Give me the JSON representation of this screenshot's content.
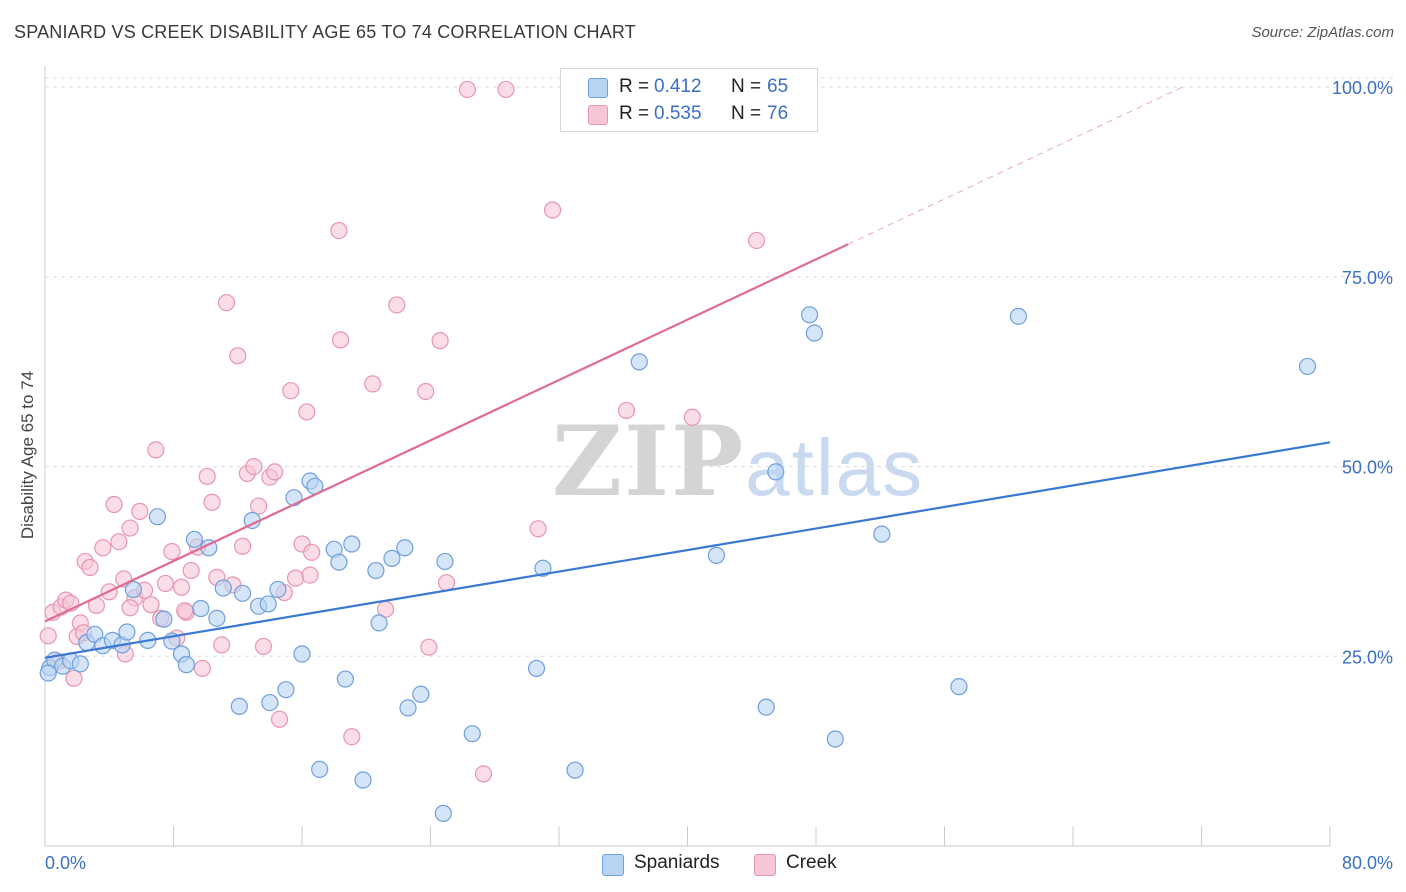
{
  "header": {
    "title": "SPANIARD VS CREEK DISABILITY AGE 65 TO 74 CORRELATION CHART",
    "source": "Source: ZipAtlas.com"
  },
  "watermark": {
    "zip": "ZIP",
    "atlas": "atlas"
  },
  "colors": {
    "spaniards_fill": "#b9d3f3",
    "spaniards_stroke": "#6f9fdd",
    "spaniards_line": "#3a78d4",
    "creek_fill": "#f7c6d5",
    "creek_stroke": "#e895b0",
    "creek_line": "#e06b94",
    "tick_label": "#3c6fc4",
    "grid": "#dddddd"
  },
  "legend": {
    "rows": [
      {
        "r_label": "R =",
        "r_value": "0.412",
        "n_label": "N =",
        "n_value": "65"
      },
      {
        "r_label": "R =",
        "r_value": "0.535",
        "n_label": "N =",
        "n_value": "76"
      }
    ]
  },
  "chart_data": {
    "type": "scatter",
    "title": "SPANIARD VS CREEK DISABILITY AGE 65 TO 74 CORRELATION CHART",
    "xlabel": "",
    "ylabel": "Disability Age 65 to 74",
    "xlim": [
      0,
      80
    ],
    "ylim": [
      0,
      102
    ],
    "x_tick_labels": [
      "0.0%",
      "80.0%"
    ],
    "y_ticks": [
      25,
      50,
      75,
      100
    ],
    "y_tick_labels": [
      "25.0%",
      "50.0%",
      "75.0%",
      "100.0%"
    ],
    "grid": true,
    "legend_position": "bottom-center",
    "series": [
      {
        "name": "Spaniards",
        "trend": {
          "x0": 0,
          "y0": 24.8,
          "x1": 80,
          "y1": 53.2
        },
        "points": [
          [
            0.3,
            23.5
          ],
          [
            0.6,
            24.5
          ],
          [
            1.1,
            23.7
          ],
          [
            1.6,
            24.4
          ],
          [
            2.2,
            24.0
          ],
          [
            2.6,
            26.8
          ],
          [
            3.1,
            27.9
          ],
          [
            3.6,
            26.4
          ],
          [
            4.2,
            27.1
          ],
          [
            4.8,
            26.5
          ],
          [
            5.1,
            28.2
          ],
          [
            5.5,
            33.8
          ],
          [
            6.4,
            27.1
          ],
          [
            7.0,
            43.4
          ],
          [
            7.4,
            29.9
          ],
          [
            7.9,
            27.0
          ],
          [
            8.5,
            25.3
          ],
          [
            8.8,
            23.9
          ],
          [
            9.3,
            40.4
          ],
          [
            9.7,
            31.3
          ],
          [
            10.2,
            39.3
          ],
          [
            10.7,
            30.0
          ],
          [
            11.1,
            34.0
          ],
          [
            12.1,
            18.4
          ],
          [
            12.3,
            33.3
          ],
          [
            12.9,
            42.9
          ],
          [
            13.3,
            31.6
          ],
          [
            13.9,
            31.9
          ],
          [
            14.0,
            18.9
          ],
          [
            14.5,
            33.8
          ],
          [
            15.0,
            20.6
          ],
          [
            15.5,
            45.9
          ],
          [
            16.0,
            25.3
          ],
          [
            16.5,
            48.1
          ],
          [
            16.8,
            47.4
          ],
          [
            17.1,
            10.1
          ],
          [
            18.0,
            39.1
          ],
          [
            18.3,
            37.4
          ],
          [
            18.7,
            22.0
          ],
          [
            19.1,
            39.8
          ],
          [
            19.8,
            8.7
          ],
          [
            20.6,
            36.3
          ],
          [
            20.8,
            29.4
          ],
          [
            21.6,
            37.9
          ],
          [
            22.4,
            39.3
          ],
          [
            22.6,
            18.2
          ],
          [
            23.4,
            20.0
          ],
          [
            24.8,
            4.3
          ],
          [
            24.9,
            37.5
          ],
          [
            26.6,
            14.8
          ],
          [
            30.6,
            23.4
          ],
          [
            31.0,
            36.6
          ],
          [
            33.0,
            10.0
          ],
          [
            37.0,
            63.8
          ],
          [
            41.8,
            38.3
          ],
          [
            44.9,
            18.3
          ],
          [
            45.5,
            49.3
          ],
          [
            47.6,
            70.0
          ],
          [
            47.9,
            67.6
          ],
          [
            49.2,
            14.1
          ],
          [
            52.1,
            41.1
          ],
          [
            56.9,
            21.0
          ],
          [
            60.6,
            69.8
          ],
          [
            78.6,
            63.2
          ],
          [
            0.2,
            22.8
          ]
        ]
      },
      {
        "name": "Creek",
        "trend": {
          "x0": 0,
          "y0": 29.6,
          "x1": 50,
          "y1": 79.3,
          "dash_to_x": 71,
          "dash_to_y": 100.2
        },
        "points": [
          [
            0.2,
            27.7
          ],
          [
            0.5,
            30.8
          ],
          [
            0.8,
            24.3
          ],
          [
            1.0,
            31.5
          ],
          [
            1.3,
            32.4
          ],
          [
            1.6,
            32.0
          ],
          [
            1.8,
            22.1
          ],
          [
            2.0,
            27.6
          ],
          [
            2.2,
            29.4
          ],
          [
            2.5,
            37.5
          ],
          [
            2.8,
            36.7
          ],
          [
            3.2,
            31.7
          ],
          [
            3.6,
            39.3
          ],
          [
            4.0,
            33.5
          ],
          [
            4.3,
            45.0
          ],
          [
            4.6,
            40.1
          ],
          [
            4.9,
            35.2
          ],
          [
            5.3,
            41.9
          ],
          [
            5.6,
            32.7
          ],
          [
            5.9,
            44.1
          ],
          [
            6.2,
            33.7
          ],
          [
            6.6,
            31.8
          ],
          [
            6.9,
            52.2
          ],
          [
            7.2,
            30.0
          ],
          [
            7.5,
            34.6
          ],
          [
            7.9,
            38.8
          ],
          [
            8.2,
            27.4
          ],
          [
            8.5,
            34.1
          ],
          [
            8.8,
            30.8
          ],
          [
            9.1,
            36.3
          ],
          [
            9.5,
            39.4
          ],
          [
            9.8,
            23.4
          ],
          [
            10.1,
            48.7
          ],
          [
            10.4,
            45.3
          ],
          [
            10.7,
            35.4
          ],
          [
            11.0,
            26.5
          ],
          [
            11.3,
            71.6
          ],
          [
            11.7,
            34.4
          ],
          [
            12.0,
            64.6
          ],
          [
            12.3,
            39.5
          ],
          [
            12.6,
            49.1
          ],
          [
            13.0,
            50.0
          ],
          [
            13.3,
            44.8
          ],
          [
            13.6,
            26.3
          ],
          [
            14.0,
            48.6
          ],
          [
            14.3,
            49.3
          ],
          [
            14.6,
            16.7
          ],
          [
            14.9,
            33.4
          ],
          [
            15.3,
            60.0
          ],
          [
            15.6,
            35.3
          ],
          [
            16.0,
            39.8
          ],
          [
            16.3,
            57.2
          ],
          [
            16.6,
            38.7
          ],
          [
            18.3,
            81.1
          ],
          [
            18.4,
            66.7
          ],
          [
            19.1,
            14.4
          ],
          [
            20.4,
            60.9
          ],
          [
            21.2,
            31.2
          ],
          [
            21.9,
            71.3
          ],
          [
            23.7,
            59.9
          ],
          [
            23.9,
            26.2
          ],
          [
            24.6,
            66.6
          ],
          [
            25.0,
            34.7
          ],
          [
            26.3,
            99.7
          ],
          [
            27.3,
            9.5
          ],
          [
            28.7,
            99.7
          ],
          [
            30.7,
            41.8
          ],
          [
            31.6,
            83.8
          ],
          [
            36.2,
            57.4
          ],
          [
            40.3,
            56.5
          ],
          [
            44.3,
            79.8
          ],
          [
            5.3,
            31.4
          ],
          [
            8.7,
            31.0
          ],
          [
            2.4,
            28.1
          ],
          [
            5.0,
            25.3
          ],
          [
            16.5,
            35.7
          ]
        ]
      }
    ]
  },
  "bottom_legend": {
    "items": [
      "Spaniards",
      "Creek"
    ]
  }
}
